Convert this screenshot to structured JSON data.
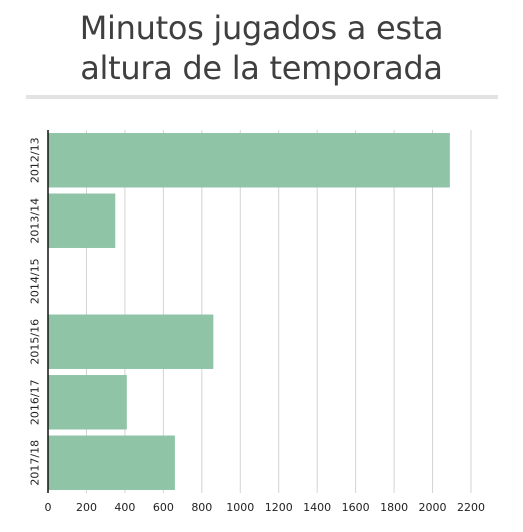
{
  "chart_data": {
    "type": "bar",
    "orientation": "horizontal",
    "title": "Minutos jugados a esta altura de la temporada",
    "title_lines": [
      "Minutos jugados a esta",
      "altura de la temporada"
    ],
    "categories": [
      "2012/13",
      "2013/14",
      "2014/15",
      "2015/16",
      "2016/17",
      "2017/18"
    ],
    "values": [
      2090,
      350,
      0,
      860,
      410,
      660
    ],
    "xlim": [
      0,
      2200
    ],
    "xticks": [
      0,
      200,
      400,
      600,
      800,
      1000,
      1200,
      1400,
      1600,
      1800,
      2000,
      2200
    ],
    "xlabel": "",
    "ylabel": "",
    "grid": "vertical",
    "legend": "none",
    "bar_color": "#8fc4a7",
    "grid_color": "#d3d3d3",
    "axis_color": "#111111"
  }
}
